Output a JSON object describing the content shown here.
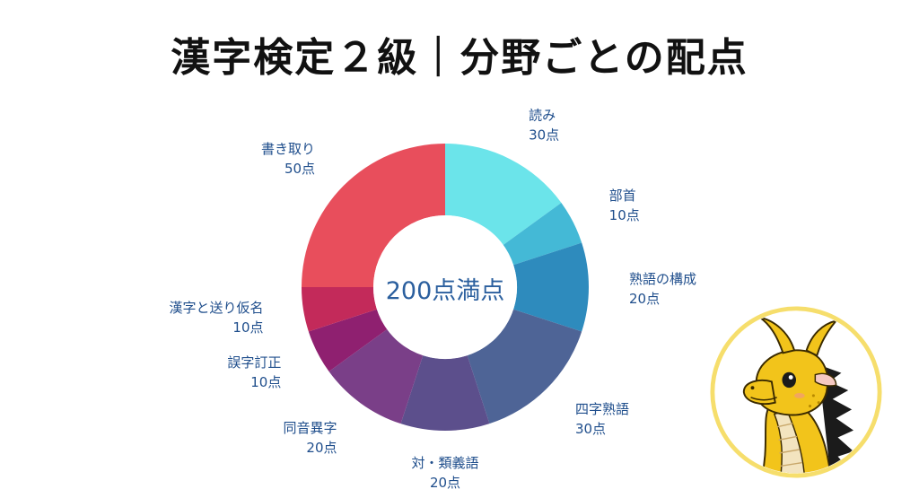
{
  "title": "漢字検定２級｜分野ごとの配点",
  "chart_data": {
    "type": "donut",
    "title": "漢字検定２級｜分野ごとの配点",
    "center_label": "200点満点",
    "total": 200,
    "unit": "点",
    "categories": [
      "読み",
      "部首",
      "熟語の構成",
      "四字熟語",
      "対・類義語",
      "同音異字",
      "誤字訂正",
      "漢字と送り仮名",
      "書き取り"
    ],
    "values": [
      30,
      10,
      20,
      30,
      20,
      20,
      10,
      10,
      50
    ],
    "value_labels": [
      "30点",
      "10点",
      "20点",
      "30点",
      "20点",
      "20点",
      "10点",
      "10点",
      "50点"
    ],
    "colors": [
      "#6be4ea",
      "#44b9d6",
      "#2e8bbd",
      "#4e6496",
      "#5c4f8c",
      "#7a3f88",
      "#8f2070",
      "#c32a5a",
      "#e84e5c"
    ]
  },
  "mascot": {
    "icon": "yellow-dragon-mascot",
    "colors": {
      "body": "#f2c41b",
      "belly": "#f3e4bf",
      "spines": "#1b1b1b",
      "ring": "#f6de6c"
    }
  }
}
